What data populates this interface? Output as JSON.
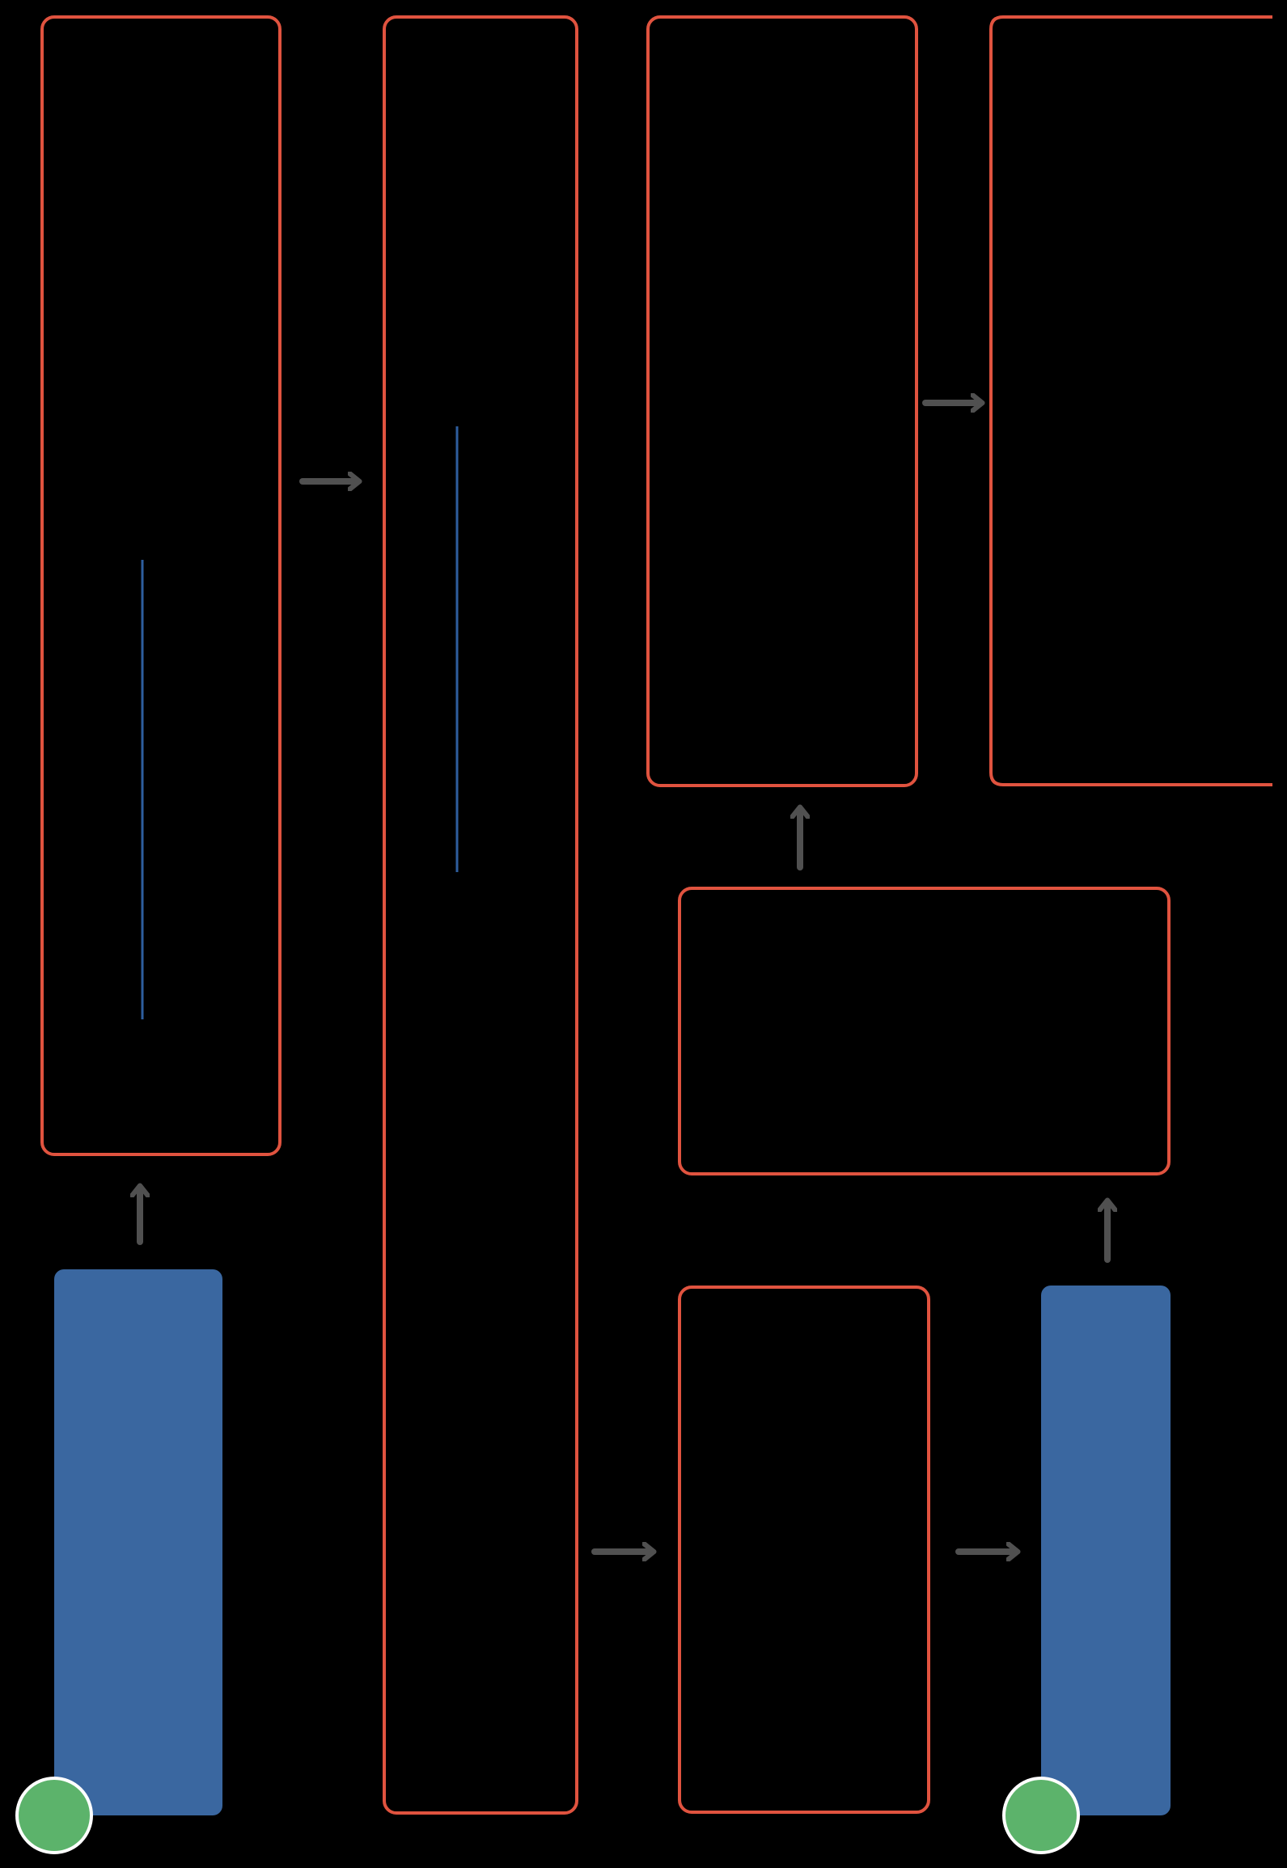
{
  "colors": {
    "background": "#000000",
    "box_outline": "#E0533F",
    "blue_fill": "#3A67A0",
    "blue_line": "#2E5E9E",
    "arrow": "#505050",
    "start_marker_fill": "#5CB36B",
    "start_marker_stroke": "#FFFFFF"
  },
  "diagram": {
    "outlined_boxes": [
      {
        "id": "box-left-tall"
      },
      {
        "id": "box-center-tall"
      },
      {
        "id": "box-upper-middle"
      },
      {
        "id": "box-upper-right"
      },
      {
        "id": "box-middle-wide"
      },
      {
        "id": "box-lower-middle"
      }
    ],
    "filled_blocks": [
      {
        "id": "blue-block-left"
      },
      {
        "id": "blue-block-right"
      }
    ],
    "markers": [
      {
        "id": "start-marker-left"
      },
      {
        "id": "start-marker-right"
      }
    ],
    "arrows": [
      {
        "direction": "up"
      },
      {
        "direction": "right"
      },
      {
        "direction": "right"
      },
      {
        "direction": "up"
      },
      {
        "direction": "right"
      },
      {
        "direction": "right"
      },
      {
        "direction": "up"
      }
    ]
  }
}
